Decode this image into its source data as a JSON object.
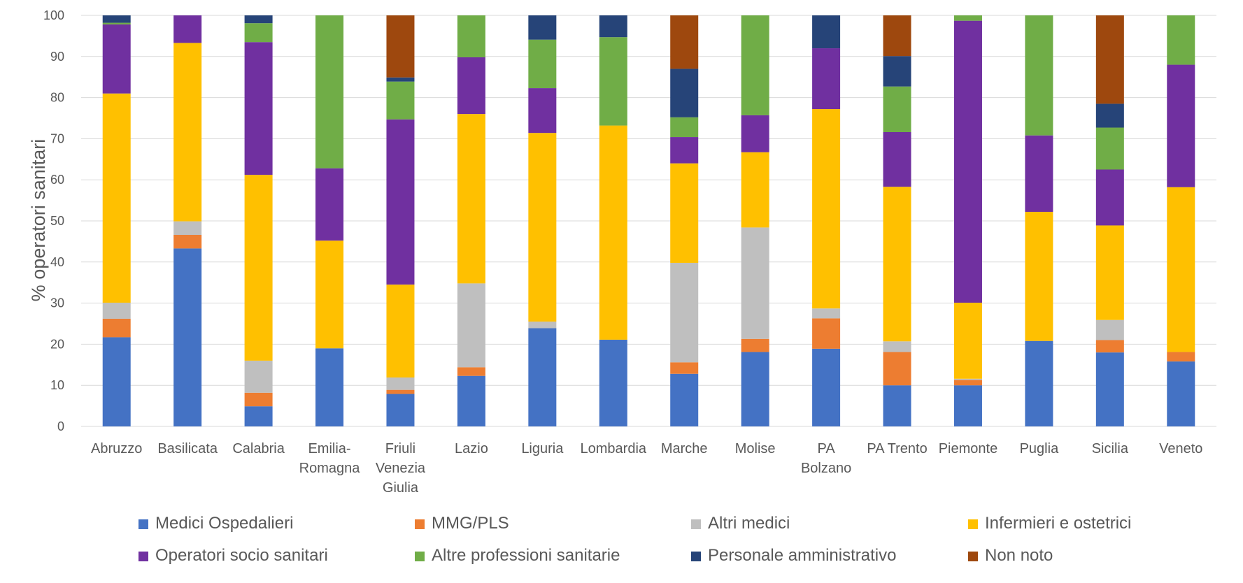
{
  "chart_data": {
    "type": "bar",
    "stacked": true,
    "ylabel": "% operatori sanitari",
    "ylim": [
      0,
      100
    ],
    "yticks": [
      0,
      10,
      20,
      30,
      40,
      50,
      60,
      70,
      80,
      90,
      100
    ],
    "grid": true,
    "legend_position": "bottom",
    "categories": [
      [
        "Abruzzo"
      ],
      [
        "Basilicata"
      ],
      [
        "Calabria"
      ],
      [
        "Emilia-",
        "Romagna"
      ],
      [
        "Friuli",
        "Venezia",
        "Giulia"
      ],
      [
        "Lazio"
      ],
      [
        "Liguria"
      ],
      [
        "Lombardia"
      ],
      [
        "Marche"
      ],
      [
        "Molise"
      ],
      [
        "PA",
        "Bolzano"
      ],
      [
        "PA Trento"
      ],
      [
        "Piemonte"
      ],
      [
        "Puglia"
      ],
      [
        "Sicilia"
      ],
      [
        "Veneto"
      ]
    ],
    "series": [
      {
        "name": "Medici Ospedalieri",
        "color": "#4472C4",
        "values": [
          21.7,
          43.3,
          4.9,
          19.0,
          7.9,
          12.3,
          23.9,
          21.1,
          12.8,
          18.1,
          18.9,
          10.0,
          10.0,
          20.8,
          18.0,
          15.8
        ]
      },
      {
        "name": "MMG/PLS",
        "color": "#ED7D31",
        "values": [
          4.5,
          3.3,
          3.3,
          0,
          1.0,
          2.1,
          0,
          0,
          2.8,
          3.2,
          7.4,
          8.1,
          1.3,
          0,
          3.0,
          2.3
        ]
      },
      {
        "name": "Altri medici",
        "color": "#BFBFBF",
        "values": [
          3.9,
          3.3,
          7.8,
          0,
          3.0,
          20.4,
          1.6,
          0,
          24.2,
          27.1,
          2.4,
          2.6,
          0.3,
          0,
          4.9,
          0
        ]
      },
      {
        "name": "Infermieri e ostetrici",
        "color": "#FFC000",
        "values": [
          50.9,
          43.4,
          45.2,
          26.2,
          22.6,
          41.2,
          45.9,
          52.1,
          24.2,
          18.3,
          48.5,
          37.6,
          18.5,
          31.4,
          23.0,
          40.1
        ]
      },
      {
        "name": "Operatori socio sanitari",
        "color": "#7030A0",
        "values": [
          16.8,
          6.7,
          32.3,
          17.6,
          40.2,
          13.8,
          10.9,
          0,
          6.4,
          9.0,
          14.8,
          13.3,
          68.6,
          18.6,
          13.6,
          29.8
        ]
      },
      {
        "name": "Altre professioni sanitarie",
        "color": "#70AD47",
        "values": [
          0.4,
          0,
          4.6,
          37.2,
          9.2,
          10.2,
          11.8,
          21.5,
          4.8,
          24.3,
          0,
          11.1,
          1.3,
          29.2,
          10.2,
          12.0
        ]
      },
      {
        "name": "Personale amministrativo",
        "color": "#264478",
        "values": [
          1.8,
          0,
          1.9,
          0,
          1.0,
          0,
          5.9,
          5.3,
          11.8,
          0,
          8.0,
          7.4,
          0,
          0,
          5.8,
          0
        ]
      },
      {
        "name": "Non noto",
        "color": "#9E480E",
        "values": [
          0,
          0,
          0,
          0,
          15.1,
          0,
          0,
          0,
          13.0,
          0,
          0,
          9.9,
          0,
          0,
          21.5,
          0
        ]
      }
    ]
  }
}
